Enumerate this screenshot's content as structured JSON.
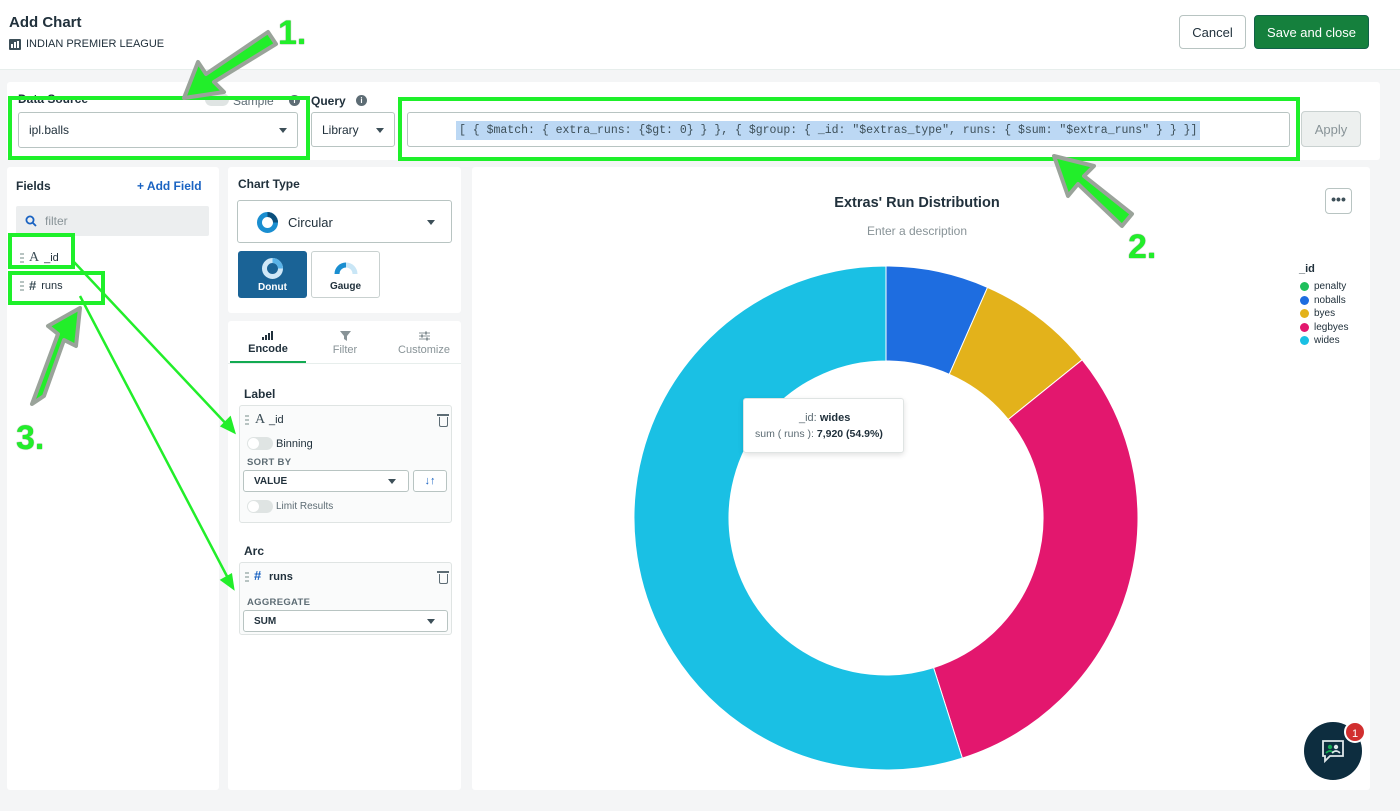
{
  "header": {
    "title": "Add Chart",
    "dashboard_name": "INDIAN PREMIER LEAGUE",
    "cancel_label": "Cancel",
    "save_label": "Save and close"
  },
  "data_source": {
    "label": "Data Source",
    "sample_label": "Sample",
    "selected": "ipl.balls",
    "query_label": "Query",
    "library_label": "Library",
    "query_text": "[ { $match: { extra_runs: {$gt: 0} } }, { $group: { _id: \"$extras_type\", runs: { $sum: \"$extra_runs\" } } }]",
    "apply_label": "Apply"
  },
  "fields": {
    "title": "Fields",
    "add_field_label": "+ Add Field",
    "filter_placeholder": "filter",
    "items": [
      {
        "type_icon": "A",
        "name": "_id"
      },
      {
        "type_icon": "#",
        "name": "runs"
      }
    ]
  },
  "chart_type": {
    "title": "Chart Type",
    "selected": "Circular",
    "options": [
      {
        "label": "Donut",
        "selected": true
      },
      {
        "label": "Gauge",
        "selected": false
      }
    ]
  },
  "encode": {
    "tabs": [
      {
        "label": "Encode",
        "active": true
      },
      {
        "label": "Filter",
        "active": false
      },
      {
        "label": "Customize",
        "active": false
      }
    ],
    "label_section": "Label",
    "label_field": "_id",
    "binning_label": "Binning",
    "sort_by_label": "SORT BY",
    "sort_value": "VALUE",
    "limit_label": "Limit Results",
    "arc_section": "Arc",
    "arc_field": "runs",
    "aggregate_label": "AGGREGATE",
    "aggregate_value": "SUM"
  },
  "chart": {
    "title": "Extras' Run Distribution",
    "description": "Enter a description",
    "legend_title": "_id",
    "tooltip": {
      "key_label": "_id:",
      "key_value": "wides",
      "value_label": "sum ( runs ):",
      "value_value": "7,920 (54.9%)"
    }
  },
  "chart_data": {
    "type": "pie",
    "donut": true,
    "categories": [
      "penalty",
      "noballs",
      "byes",
      "legbyes",
      "wides"
    ],
    "values": [
      0.0,
      6.6,
      7.6,
      30.9,
      54.9
    ],
    "value_unit": "percent of sum(runs)",
    "colors": [
      "#1fbf5c",
      "#1e6de0",
      "#e3b21b",
      "#e3176e",
      "#1ac0e4"
    ],
    "title": "Extras' Run Distribution"
  },
  "chat": {
    "badge_count": "1"
  },
  "annotations": {
    "n1": "1.",
    "n2": "2.",
    "n3": "3.",
    "color": "#1ef02a"
  }
}
